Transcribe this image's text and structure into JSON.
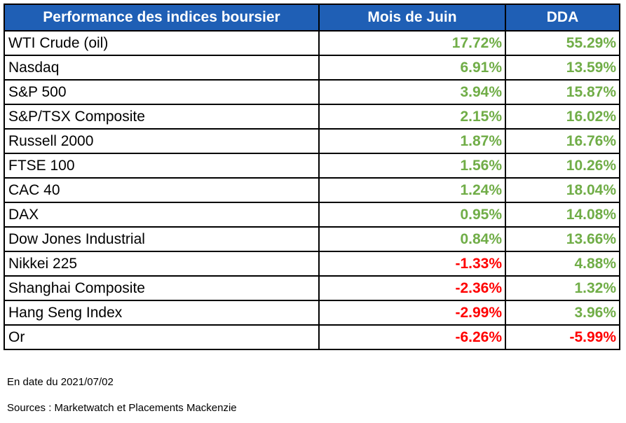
{
  "table": {
    "headers": {
      "name": "Performance des indices boursier",
      "month": "Mois de Juin",
      "ytd": "DDA"
    },
    "rows": [
      {
        "name": "WTI Crude (oil)",
        "month": "17.72%",
        "ytd": "55.29%",
        "month_sign": "pos",
        "ytd_sign": "pos"
      },
      {
        "name": "Nasdaq",
        "month": "6.91%",
        "ytd": "13.59%",
        "month_sign": "pos",
        "ytd_sign": "pos"
      },
      {
        "name": "S&P 500",
        "month": "3.94%",
        "ytd": "15.87%",
        "month_sign": "pos",
        "ytd_sign": "pos"
      },
      {
        "name": "S&P/TSX Composite",
        "month": "2.15%",
        "ytd": "16.02%",
        "month_sign": "pos",
        "ytd_sign": "pos"
      },
      {
        "name": "Russell 2000",
        "month": "1.87%",
        "ytd": "16.76%",
        "month_sign": "pos",
        "ytd_sign": "pos"
      },
      {
        "name": "FTSE 100",
        "month": "1.56%",
        "ytd": "10.26%",
        "month_sign": "pos",
        "ytd_sign": "pos"
      },
      {
        "name": "CAC 40",
        "month": "1.24%",
        "ytd": "18.04%",
        "month_sign": "pos",
        "ytd_sign": "pos"
      },
      {
        "name": "DAX",
        "month": "0.95%",
        "ytd": "14.08%",
        "month_sign": "pos",
        "ytd_sign": "pos"
      },
      {
        "name": "Dow Jones Industrial",
        "month": "0.84%",
        "ytd": "13.66%",
        "month_sign": "pos",
        "ytd_sign": "pos"
      },
      {
        "name": "Nikkei 225",
        "month": "-1.33%",
        "ytd": "4.88%",
        "month_sign": "neg",
        "ytd_sign": "pos"
      },
      {
        "name": "Shanghai Composite",
        "month": "-2.36%",
        "ytd": "1.32%",
        "month_sign": "neg",
        "ytd_sign": "pos"
      },
      {
        "name": "Hang Seng Index",
        "month": "-2.99%",
        "ytd": "3.96%",
        "month_sign": "neg",
        "ytd_sign": "pos"
      },
      {
        "name": "Or",
        "month": "-6.26%",
        "ytd": "-5.99%",
        "month_sign": "neg",
        "ytd_sign": "neg"
      }
    ]
  },
  "footer": {
    "date_note": "En date du 2021/07/02",
    "sources_note": "Sources : Marketwatch et Placements Mackenzie"
  },
  "colors": {
    "header_bg": "#1f5fb5",
    "positive": "#70ad47",
    "negative": "#ff0000"
  }
}
